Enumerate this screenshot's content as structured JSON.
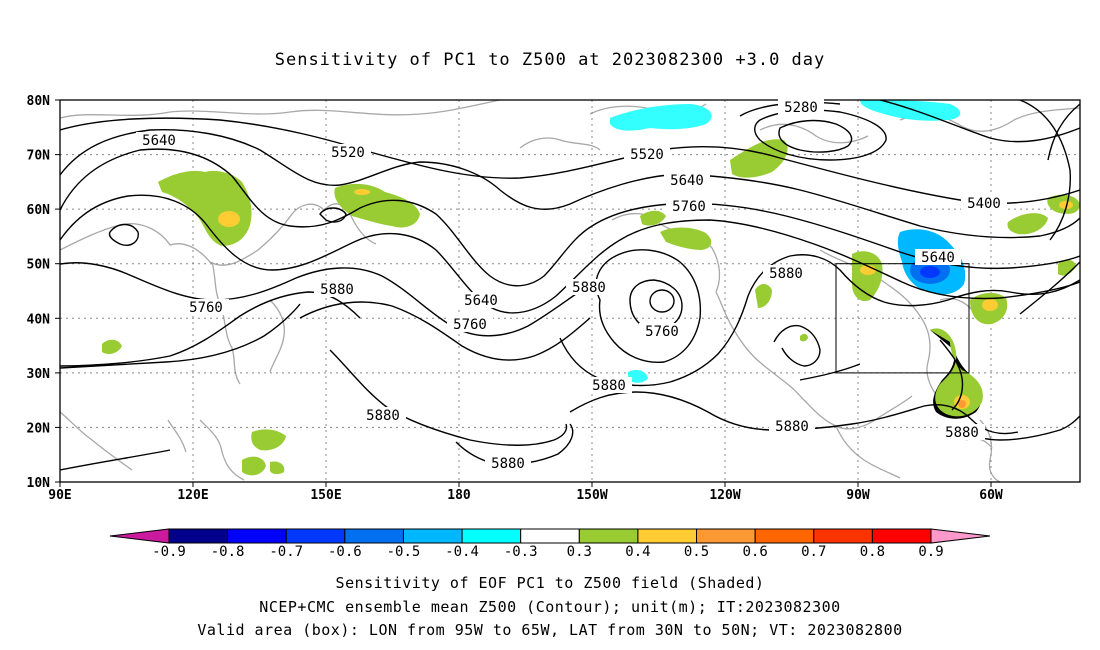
{
  "title": "Sensitivity of PC1 to Z500 at 2023082300 +3.0 day",
  "map": {
    "lat_labels": [
      "80N",
      "70N",
      "60N",
      "50N",
      "40N",
      "30N",
      "20N",
      "10N"
    ],
    "lon_labels": [
      "90E",
      "120E",
      "150E",
      "180",
      "150W",
      "120W",
      "90W",
      "60W"
    ],
    "contour_labels": [
      "5640",
      "5520",
      "5280",
      "5520",
      "5640",
      "5760",
      "5400",
      "5640",
      "5880",
      "5760",
      "5880",
      "5640",
      "5760",
      "5880",
      "5760",
      "5880",
      "5880",
      "5880",
      "5880",
      "5880"
    ],
    "valid_box": {
      "lon_min": "95W",
      "lon_max": "65W",
      "lat_min": "30N",
      "lat_max": "50N"
    }
  },
  "colorbar": {
    "labels": [
      "-0.9",
      "-0.8",
      "-0.7",
      "-0.6",
      "-0.5",
      "-0.4",
      "-0.3",
      "0.3",
      "0.4",
      "0.5",
      "0.6",
      "0.7",
      "0.8",
      "0.9"
    ],
    "colors": [
      "#00008b",
      "#0000ff",
      "#0038ff",
      "#0070f0",
      "#00b8ff",
      "#00ffff",
      "#ffffff",
      "#99cc33",
      "#ffcc33",
      "#ff9933",
      "#ff6600",
      "#ff3300",
      "#ff0000"
    ],
    "low_extend": "#cc1aa0",
    "high_extend": "#ff99cc"
  },
  "footer": {
    "line1": "Sensitivity of EOF PC1 to Z500 field (Shaded)",
    "line2": "NCEP+CMC ensemble mean Z500 (Contour); unit(m); IT:2023082300",
    "line3": "Valid area (box): LON from 95W to 65W, LAT from 30N to 50N; VT: 2023082800"
  }
}
